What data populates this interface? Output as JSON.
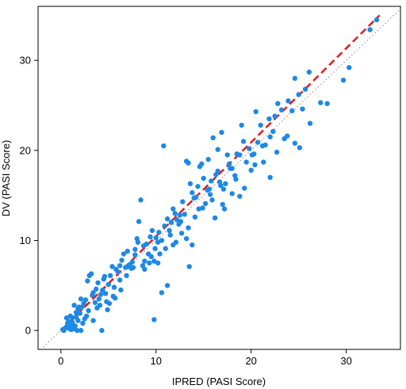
{
  "chart_data": {
    "type": "scatter",
    "title": "",
    "xlabel": "IPRED (PASI Score)",
    "ylabel": "DV (PASI Score)",
    "xlim": [
      -2.4,
      35.7
    ],
    "ylim": [
      -2.1,
      36.0
    ],
    "x_ticks": [
      0,
      10,
      20,
      30
    ],
    "y_ticks": [
      0,
      10,
      20,
      30
    ],
    "grid": false,
    "legend": "none",
    "series": [
      {
        "marker": "circle",
        "color": "#1E88E5",
        "points": [
          [
            33.2,
            34.5
          ],
          [
            32.5,
            33.4
          ],
          [
            30.3,
            29.2
          ],
          [
            29.7,
            27.8
          ],
          [
            27.3,
            25.3
          ],
          [
            26.1,
            28.7
          ],
          [
            25.7,
            26.8
          ],
          [
            25.0,
            26.2
          ],
          [
            24.6,
            28.0
          ],
          [
            24.3,
            24.4
          ],
          [
            23.9,
            25.5
          ],
          [
            23.2,
            24.5
          ],
          [
            22.8,
            25.2
          ],
          [
            22.5,
            23.8
          ],
          [
            22.3,
            22.1
          ],
          [
            22.0,
            21.5
          ],
          [
            21.9,
            23.5
          ],
          [
            21.5,
            20.6
          ],
          [
            21.2,
            20.5
          ],
          [
            21.0,
            22.8
          ],
          [
            20.7,
            20.9
          ],
          [
            20.5,
            24.3
          ],
          [
            20.3,
            19.6
          ],
          [
            20.1,
            19.5
          ],
          [
            19.8,
            20.2
          ],
          [
            19.5,
            18.7
          ],
          [
            19.2,
            21.0
          ],
          [
            19.0,
            22.8
          ],
          [
            18.8,
            19.5
          ],
          [
            18.5,
            19.6
          ],
          [
            18.3,
            17.2
          ],
          [
            18.0,
            18.0
          ],
          [
            17.8,
            18.0
          ],
          [
            17.5,
            19.5
          ],
          [
            17.3,
            16.3
          ],
          [
            17.1,
            15.7
          ],
          [
            16.9,
            22.0
          ],
          [
            16.7,
            16.5
          ],
          [
            16.5,
            20.1
          ],
          [
            16.3,
            17.3
          ],
          [
            16.0,
            21.4
          ],
          [
            15.8,
            16.6
          ],
          [
            15.6,
            15.7
          ],
          [
            15.4,
            15.6
          ],
          [
            15.2,
            14.1
          ],
          [
            15.0,
            16.9
          ],
          [
            14.8,
            18.5
          ],
          [
            14.6,
            18.2
          ],
          [
            14.4,
            16.0
          ],
          [
            14.2,
            14.8
          ],
          [
            14.0,
            14.7
          ],
          [
            13.8,
            15.3
          ],
          [
            13.6,
            16.3
          ],
          [
            13.4,
            18.6
          ],
          [
            13.2,
            18.8
          ],
          [
            13.0,
            12.9
          ],
          [
            12.8,
            14.3
          ],
          [
            12.6,
            12.1
          ],
          [
            12.4,
            11.8
          ],
          [
            12.2,
            12.3
          ],
          [
            12.0,
            13.0
          ],
          [
            11.8,
            13.5
          ],
          [
            11.6,
            12.0
          ],
          [
            11.4,
            11.1
          ],
          [
            11.2,
            12.4
          ],
          [
            11.0,
            9.1
          ],
          [
            10.8,
            20.5
          ],
          [
            10.6,
            10.0
          ],
          [
            10.4,
            8.5
          ],
          [
            10.2,
            7.5
          ],
          [
            10.0,
            10.3
          ],
          [
            9.8,
            7.7
          ],
          [
            9.6,
            11.1
          ],
          [
            9.4,
            10.4
          ],
          [
            9.2,
            8.5
          ],
          [
            9.0,
            9.6
          ],
          [
            8.8,
            7.7
          ],
          [
            8.6,
            7.2
          ],
          [
            8.4,
            14.5
          ],
          [
            8.2,
            12.1
          ],
          [
            8.0,
            10.2
          ],
          [
            7.8,
            9.0
          ],
          [
            7.6,
            7.0
          ],
          [
            7.4,
            6.9
          ],
          [
            7.2,
            7.3
          ],
          [
            7.0,
            7.1
          ],
          [
            6.8,
            7.0
          ],
          [
            6.6,
            8.5
          ],
          [
            6.4,
            7.8
          ],
          [
            6.2,
            7.2
          ],
          [
            6.0,
            6.5
          ],
          [
            5.8,
            6.8
          ],
          [
            5.6,
            4.8
          ],
          [
            5.4,
            7.1
          ],
          [
            5.2,
            6.1
          ],
          [
            5.0,
            5.1
          ],
          [
            4.8,
            3.2
          ],
          [
            4.6,
            6.0
          ],
          [
            4.4,
            4.5
          ],
          [
            4.2,
            4.0
          ],
          [
            4.0,
            3.5
          ],
          [
            3.8,
            2.5
          ],
          [
            3.6,
            3.1
          ],
          [
            3.4,
            4.2
          ],
          [
            3.2,
            6.3
          ],
          [
            3.0,
            6.1
          ],
          [
            2.8,
            5.5
          ],
          [
            2.6,
            3.4
          ],
          [
            2.4,
            3.0
          ],
          [
            2.2,
            2.6
          ],
          [
            2.0,
            1.9
          ],
          [
            1.8,
            2.4
          ],
          [
            1.6,
            1.5
          ],
          [
            1.4,
            2.8
          ],
          [
            1.2,
            1.4
          ],
          [
            1.0,
            0.7
          ],
          [
            0.8,
            0.5
          ],
          [
            0.6,
            1.4
          ],
          [
            0.5,
            0.3
          ],
          [
            0.4,
            0.2
          ],
          [
            0.3,
            0.0
          ],
          [
            0.2,
            0.1
          ],
          [
            0.9,
            0.2
          ],
          [
            1.1,
            0.1
          ],
          [
            1.3,
            0.3
          ],
          [
            0.7,
            0.8
          ],
          [
            1.5,
            0.5
          ],
          [
            1.7,
            0.0
          ],
          [
            2.1,
            0.0
          ],
          [
            4.3,
            0.0
          ],
          [
            9.8,
            1.2
          ],
          [
            11.2,
            5.0
          ],
          [
            10.6,
            4.2
          ],
          [
            13.2,
            10.2
          ],
          [
            13.8,
            9.5
          ],
          [
            13.5,
            7.1
          ],
          [
            15.9,
            14.5
          ],
          [
            16.2,
            12.5
          ],
          [
            17.2,
            13.5
          ],
          [
            18.8,
            14.9
          ],
          [
            20.0,
            17.8
          ],
          [
            22.0,
            17.0
          ],
          [
            23.5,
            21.3
          ],
          [
            24.6,
            20.8
          ],
          [
            25.1,
            20.3
          ],
          [
            26.2,
            23.0
          ],
          [
            25.4,
            24.6
          ],
          [
            28.0,
            25.2
          ],
          [
            18.0,
            15.2
          ],
          [
            17.0,
            14.0
          ],
          [
            16.5,
            17.7
          ],
          [
            15.5,
            19.0
          ],
          [
            14.5,
            13.5
          ],
          [
            12.5,
            12.8
          ],
          [
            11.8,
            9.5
          ],
          [
            10.2,
            9.8
          ],
          [
            9.5,
            8.2
          ],
          [
            8.8,
            6.8
          ],
          [
            7.8,
            8.4
          ],
          [
            7.0,
            8.8
          ],
          [
            6.2,
            5.6
          ],
          [
            5.5,
            3.8
          ],
          [
            4.9,
            2.3
          ],
          [
            4.5,
            5.7
          ],
          [
            3.9,
            5.3
          ],
          [
            3.4,
            1.1
          ],
          [
            2.9,
            2.2
          ],
          [
            2.5,
            1.3
          ],
          [
            2.1,
            3.5
          ],
          [
            1.9,
            2.6
          ],
          [
            1.6,
            2.0
          ],
          [
            1.3,
            0.6
          ],
          [
            1.0,
            1.6
          ],
          [
            0.8,
            1.0
          ],
          [
            19.3,
            15.8
          ],
          [
            20.4,
            18.4
          ],
          [
            21.3,
            18.7
          ],
          [
            22.7,
            19.8
          ],
          [
            23.8,
            21.6
          ],
          [
            18.4,
            16.8
          ],
          [
            17.7,
            18.5
          ],
          [
            16.8,
            16.1
          ],
          [
            15.7,
            15.1
          ],
          [
            14.9,
            13.6
          ],
          [
            14.1,
            12.6
          ],
          [
            13.4,
            11.4
          ],
          [
            12.7,
            10.8
          ],
          [
            12.1,
            9.8
          ],
          [
            11.5,
            10.6
          ],
          [
            10.9,
            11.6
          ],
          [
            10.3,
            10.9
          ],
          [
            9.9,
            9.1
          ],
          [
            9.3,
            7.5
          ],
          [
            8.7,
            9.4
          ],
          [
            8.1,
            9.8
          ],
          [
            7.5,
            7.6
          ],
          [
            6.9,
            6.1
          ],
          [
            6.3,
            4.5
          ],
          [
            5.7,
            3.6
          ],
          [
            5.1,
            3.0
          ],
          [
            4.7,
            4.1
          ],
          [
            4.1,
            2.8
          ],
          [
            3.7,
            4.6
          ],
          [
            3.3,
            3.9
          ],
          [
            2.7,
            1.6
          ],
          [
            2.3,
            0.8
          ],
          [
            1.8,
            1.1
          ],
          [
            1.4,
            0.2
          ],
          [
            1.2,
            0.9
          ],
          [
            0.6,
            0.4
          ]
        ]
      }
    ],
    "reference_lines": [
      {
        "kind": "identity",
        "style": "dotted",
        "color": "#999999",
        "from": [
          -2.4,
          -2.4
        ],
        "to": [
          35.7,
          35.7
        ]
      },
      {
        "kind": "trend",
        "style": "dashed",
        "color": "#E41A1C",
        "from": [
          0,
          0
        ],
        "to": [
          33.5,
          35.0
        ]
      }
    ]
  }
}
